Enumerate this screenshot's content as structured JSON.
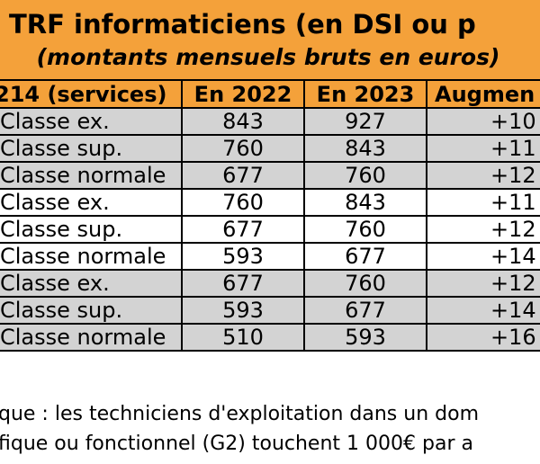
{
  "title": {
    "main": "SE TRF informaticiens (en DSI ou p",
    "subtitle": "(montants mensuels bruts en euros)"
  },
  "columns": [
    "214 (services)",
    "En 2022",
    "En 2023",
    "Augmen"
  ],
  "rows": [
    {
      "service": "Classe ex.",
      "y2022": "843",
      "y2023": "927",
      "increase": "+10",
      "shade": "grey"
    },
    {
      "service": "Classe sup.",
      "y2022": "760",
      "y2023": "843",
      "increase": "+11",
      "shade": "grey"
    },
    {
      "service": "Classe normale",
      "y2022": "677",
      "y2023": "760",
      "increase": "+12",
      "shade": "grey"
    },
    {
      "service": "Classe ex.",
      "y2022": "760",
      "y2023": "843",
      "increase": "+11",
      "shade": "white"
    },
    {
      "service": "Classe sup.",
      "y2022": "677",
      "y2023": "760",
      "increase": "+12",
      "shade": "white"
    },
    {
      "service": "Classe normale",
      "y2022": "593",
      "y2023": "677",
      "increase": "+14",
      "shade": "white"
    },
    {
      "service": "Classe ex.",
      "y2022": "677",
      "y2023": "760",
      "increase": "+12",
      "shade": "grey"
    },
    {
      "service": "Classe sup.",
      "y2022": "593",
      "y2023": "677",
      "increase": "+14",
      "shade": "grey"
    },
    {
      "service": "Classe normale",
      "y2022": "510",
      "y2023": "593",
      "increase": "+16",
      "shade": "grey"
    }
  ],
  "footnote": {
    "line1": "que : les techniciens d'exploitation dans un dom",
    "line2": "fique ou fonctionnel (G2) touchent 1 000€ par a"
  },
  "colors": {
    "header_bg": "#f4a13a",
    "grey_row": "#d3d3d3",
    "white_row": "#ffffff",
    "border": "#000000"
  }
}
